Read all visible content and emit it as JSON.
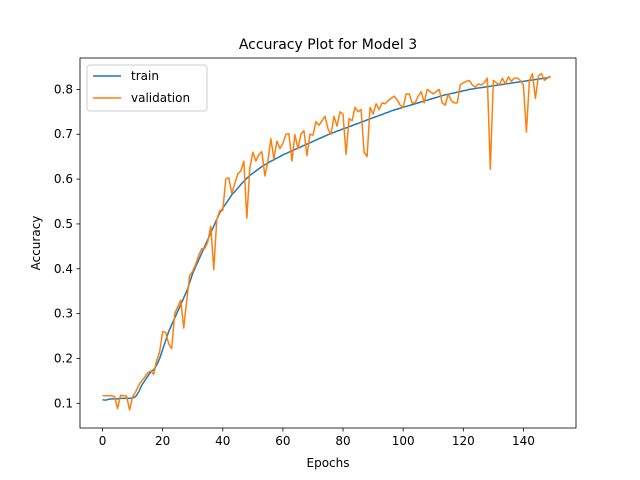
{
  "chart_data": {
    "type": "line",
    "title": "Accuracy Plot for Model 3",
    "xlabel": "Epochs",
    "ylabel": "Accuracy",
    "xlim": [
      -7.5,
      157.5
    ],
    "ylim": [
      0.045,
      0.87
    ],
    "xticks": [
      0,
      20,
      40,
      60,
      80,
      100,
      120,
      140
    ],
    "yticks": [
      0.1,
      0.2,
      0.3,
      0.4,
      0.5,
      0.6,
      0.7,
      0.8
    ],
    "grid": false,
    "legend": "top-left",
    "x": [
      0,
      1,
      2,
      3,
      4,
      5,
      6,
      7,
      8,
      9,
      10,
      11,
      12,
      13,
      14,
      15,
      16,
      17,
      18,
      19,
      20,
      21,
      22,
      23,
      24,
      25,
      26,
      27,
      28,
      29,
      30,
      31,
      32,
      33,
      34,
      35,
      36,
      37,
      38,
      39,
      40,
      41,
      42,
      43,
      44,
      45,
      46,
      47,
      48,
      49,
      50,
      51,
      52,
      53,
      54,
      55,
      56,
      57,
      58,
      59,
      60,
      61,
      62,
      63,
      64,
      65,
      66,
      67,
      68,
      69,
      70,
      71,
      72,
      73,
      74,
      75,
      76,
      77,
      78,
      79,
      80,
      81,
      82,
      83,
      84,
      85,
      86,
      87,
      88,
      89,
      90,
      91,
      92,
      93,
      94,
      95,
      96,
      97,
      98,
      99,
      100,
      101,
      102,
      103,
      104,
      105,
      106,
      107,
      108,
      109,
      110,
      111,
      112,
      113,
      114,
      115,
      116,
      117,
      118,
      119,
      120,
      121,
      122,
      123,
      124,
      125,
      126,
      127,
      128,
      129,
      130,
      131,
      132,
      133,
      134,
      135,
      136,
      137,
      138,
      139,
      140,
      141,
      142,
      143,
      144,
      145,
      146,
      147,
      148,
      149
    ],
    "series": [
      {
        "name": "train",
        "color": "#1f77b4",
        "values": [
          0.108,
          0.107,
          0.109,
          0.11,
          0.11,
          0.11,
          0.111,
          0.111,
          0.111,
          0.111,
          0.112,
          0.115,
          0.125,
          0.14,
          0.15,
          0.16,
          0.17,
          0.175,
          0.185,
          0.2,
          0.22,
          0.24,
          0.26,
          0.275,
          0.29,
          0.305,
          0.32,
          0.335,
          0.35,
          0.37,
          0.39,
          0.405,
          0.42,
          0.435,
          0.45,
          0.465,
          0.48,
          0.495,
          0.51,
          0.525,
          0.535,
          0.545,
          0.555,
          0.565,
          0.572,
          0.58,
          0.588,
          0.595,
          0.602,
          0.608,
          0.613,
          0.618,
          0.623,
          0.628,
          0.632,
          0.636,
          0.64,
          0.643,
          0.647,
          0.65,
          0.654,
          0.657,
          0.66,
          0.663,
          0.666,
          0.669,
          0.672,
          0.675,
          0.678,
          0.681,
          0.684,
          0.687,
          0.69,
          0.693,
          0.696,
          0.699,
          0.702,
          0.704,
          0.707,
          0.709,
          0.712,
          0.714,
          0.717,
          0.719,
          0.722,
          0.724,
          0.727,
          0.729,
          0.732,
          0.734,
          0.737,
          0.739,
          0.742,
          0.744,
          0.747,
          0.749,
          0.752,
          0.754,
          0.756,
          0.758,
          0.76,
          0.762,
          0.764,
          0.766,
          0.768,
          0.77,
          0.772,
          0.774,
          0.776,
          0.778,
          0.78,
          0.782,
          0.784,
          0.786,
          0.788,
          0.789,
          0.791,
          0.792,
          0.794,
          0.795,
          0.797,
          0.798,
          0.8,
          0.801,
          0.802,
          0.803,
          0.804,
          0.805,
          0.806,
          0.807,
          0.808,
          0.809,
          0.81,
          0.811,
          0.812,
          0.813,
          0.814,
          0.815,
          0.816,
          0.817,
          0.818,
          0.819,
          0.82,
          0.821,
          0.822,
          0.823,
          0.824,
          0.825,
          0.826,
          0.828
        ]
      },
      {
        "name": "validation",
        "color": "#ff7f0e",
        "values": [
          0.117,
          0.117,
          0.117,
          0.117,
          0.115,
          0.088,
          0.118,
          0.117,
          0.116,
          0.085,
          0.115,
          0.125,
          0.14,
          0.15,
          0.158,
          0.168,
          0.172,
          0.165,
          0.195,
          0.215,
          0.26,
          0.258,
          0.233,
          0.222,
          0.3,
          0.315,
          0.33,
          0.268,
          0.33,
          0.385,
          0.395,
          0.41,
          0.43,
          0.445,
          0.445,
          0.46,
          0.495,
          0.398,
          0.51,
          0.53,
          0.53,
          0.6,
          0.603,
          0.568,
          0.59,
          0.612,
          0.618,
          0.64,
          0.513,
          0.625,
          0.66,
          0.64,
          0.655,
          0.661,
          0.607,
          0.64,
          0.69,
          0.645,
          0.685,
          0.668,
          0.68,
          0.7,
          0.701,
          0.64,
          0.699,
          0.668,
          0.7,
          0.708,
          0.652,
          0.7,
          0.698,
          0.728,
          0.72,
          0.73,
          0.74,
          0.712,
          0.7,
          0.74,
          0.718,
          0.75,
          0.745,
          0.655,
          0.735,
          0.73,
          0.76,
          0.75,
          0.755,
          0.66,
          0.65,
          0.76,
          0.745,
          0.768,
          0.755,
          0.77,
          0.768,
          0.775,
          0.78,
          0.785,
          0.777,
          0.765,
          0.76,
          0.79,
          0.79,
          0.77,
          0.77,
          0.785,
          0.795,
          0.77,
          0.8,
          0.795,
          0.79,
          0.795,
          0.8,
          0.77,
          0.765,
          0.79,
          0.775,
          0.77,
          0.77,
          0.81,
          0.815,
          0.818,
          0.82,
          0.81,
          0.805,
          0.812,
          0.81,
          0.815,
          0.825,
          0.622,
          0.82,
          0.815,
          0.81,
          0.825,
          0.812,
          0.828,
          0.818,
          0.825,
          0.825,
          0.82,
          0.81,
          0.705,
          0.82,
          0.835,
          0.78,
          0.83,
          0.835,
          0.82,
          0.825,
          0.83
        ]
      }
    ]
  }
}
